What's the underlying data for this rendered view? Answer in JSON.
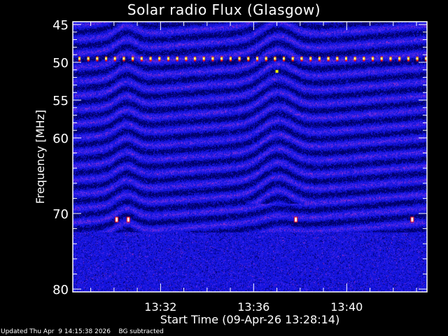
{
  "chart_data": {
    "type": "heatmap",
    "title": "Solar radio Flux (Glasgow)",
    "xlabel": "Start Time (09-Apr-26 13:28:14)",
    "ylabel": "Frequency [MHz]",
    "x_ticks": [
      "13:32",
      "13:36",
      "13:40"
    ],
    "x_tick_minutes": [
      32,
      36,
      40
    ],
    "xlim_minutes": [
      28.23,
      43.45
    ],
    "y_ticks": [
      45,
      50,
      55,
      60,
      70,
      80
    ],
    "ylim": [
      45,
      80
    ],
    "y_inverted": true,
    "colormap": [
      "#000060",
      "#0000ff",
      "#8040c0",
      "#ff0000",
      "#ffff00",
      "#ffffff"
    ],
    "features": {
      "interference_line_mhz": 49.5,
      "spike_minutes": [
        30.1,
        30.6,
        37.8,
        42.8
      ]
    }
  },
  "footer": {
    "updated": "Updated Thu Apr  9 14:15:38 2026",
    "note": "BG subtracted"
  }
}
